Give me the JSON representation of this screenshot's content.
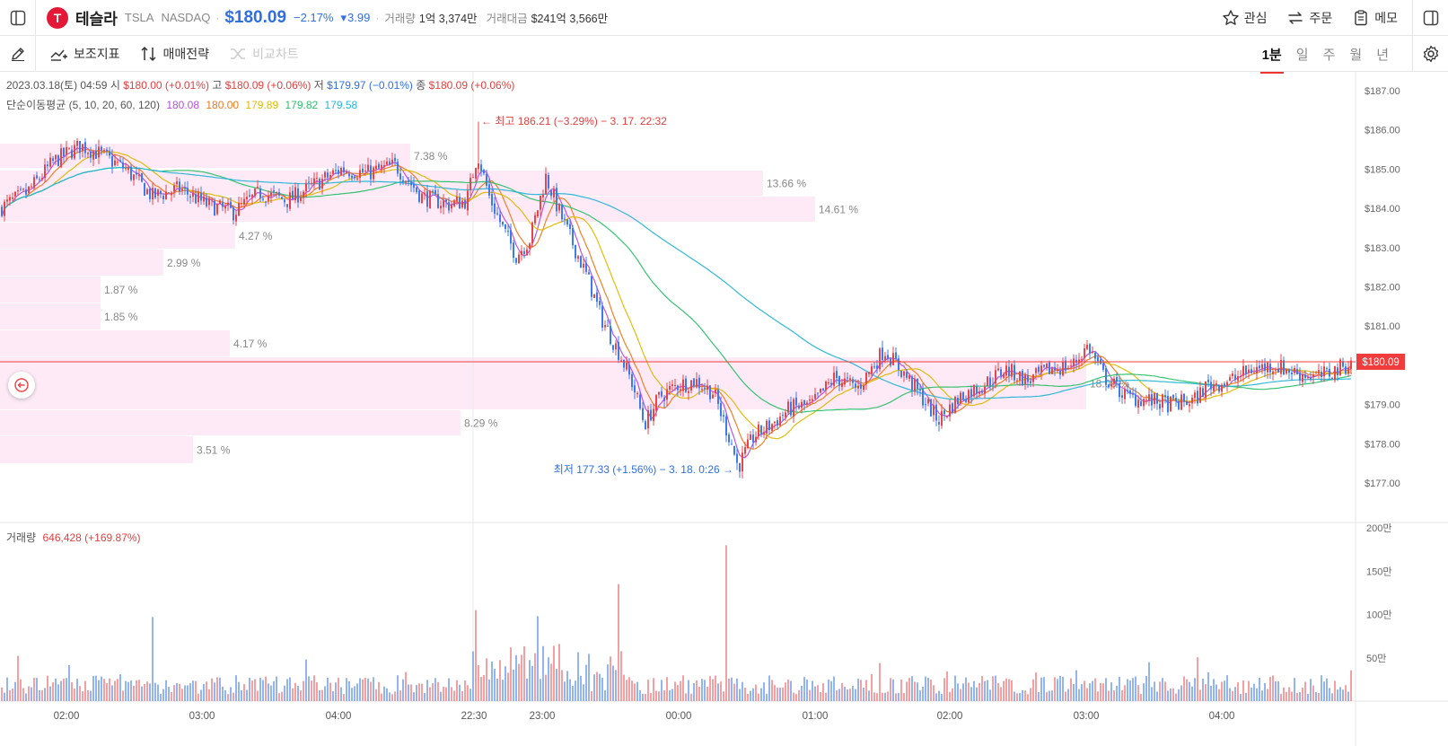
{
  "header": {
    "ticker_name": "테슬라",
    "symbol": "TSLA",
    "exchange": "NASDAQ",
    "price": "$180.09",
    "change_pct": "−2.17%",
    "change_abs": "3.99",
    "volume_label": "거래량",
    "volume_value": "1억 3,374만",
    "amount_label": "거래대금",
    "amount_value": "$241억 3,566만",
    "actions": {
      "watch": "관심",
      "order": "주문",
      "memo": "메모"
    }
  },
  "toolbar": {
    "indicators": "보조지표",
    "strategy": "매매전략",
    "compare": "비교차트"
  },
  "periods": [
    "1분",
    "일",
    "주",
    "월",
    "년"
  ],
  "info": {
    "date": "2023.03.18(토) 04:59",
    "open_label": "시",
    "open": "$180.00 (+0.01%)",
    "high_label": "고",
    "high": "$180.09 (+0.06%)",
    "low_label": "저",
    "low": "$179.97 (−0.01%)",
    "close_label": "종",
    "close": "$180.09 (+0.06%)",
    "ma_label": "단순이동평균 (5, 10, 20, 60, 120)",
    "ma_values": [
      "180.08",
      "180.00",
      "179.89",
      "179.82",
      "179.58"
    ],
    "ma_colors": [
      "#b44fe0",
      "#f07a1e",
      "#e0b800",
      "#2bbf6a",
      "#27b4d6"
    ],
    "vol_label": "거래량",
    "vol_value": "646,428 (+169.87%)"
  },
  "annotations": {
    "high": "← 최고 186.21 (−3.29%) − 3. 17. 22:32",
    "low": "최저 177.33 (+1.56%) − 3. 18. 0:26 →",
    "current_price": "$180.09"
  },
  "colors": {
    "up": "#e8454a",
    "down": "#3d7be8",
    "profile": "#fdeaf6",
    "current": "#f03c3c"
  },
  "chart_data": {
    "type": "candlestick",
    "y_axis": {
      "min": 177.0,
      "max": 187.0,
      "ticks": [
        "$177.00",
        "$178.00",
        "$179.00",
        "$180.00",
        "$181.00",
        "$182.00",
        "$183.00",
        "$184.00",
        "$185.00",
        "$186.00",
        "$187.00"
      ]
    },
    "x_ticks": [
      "02:00",
      "03:00",
      "04:00",
      "22:30",
      "23:00",
      "00:00",
      "01:00",
      "02:00",
      "03:00",
      "04:00"
    ],
    "price_path": [
      [
        0,
        184.0
      ],
      [
        30,
        184.4
      ],
      [
        60,
        185.2
      ],
      [
        90,
        185.6
      ],
      [
        110,
        185.4
      ],
      [
        140,
        185.0
      ],
      [
        170,
        184.3
      ],
      [
        200,
        184.5
      ],
      [
        230,
        184.1
      ],
      [
        260,
        183.9
      ],
      [
        290,
        184.4
      ],
      [
        320,
        184.2
      ],
      [
        350,
        184.6
      ],
      [
        380,
        185.0
      ],
      [
        410,
        184.9
      ],
      [
        440,
        185.1
      ],
      [
        470,
        184.3
      ],
      [
        500,
        184.1
      ],
      [
        520,
        184.2
      ],
      [
        532,
        185.4
      ],
      [
        545,
        184.3
      ],
      [
        560,
        183.5
      ],
      [
        575,
        182.8
      ],
      [
        590,
        183.2
      ],
      [
        608,
        184.8
      ],
      [
        625,
        183.8
      ],
      [
        640,
        183.0
      ],
      [
        655,
        182.2
      ],
      [
        670,
        181.2
      ],
      [
        690,
        180.3
      ],
      [
        705,
        179.5
      ],
      [
        718,
        178.5
      ],
      [
        735,
        179.2
      ],
      [
        755,
        179.5
      ],
      [
        775,
        179.6
      ],
      [
        795,
        179.3
      ],
      [
        815,
        178.0
      ],
      [
        822,
        177.4
      ],
      [
        840,
        178.2
      ],
      [
        860,
        178.5
      ],
      [
        880,
        178.9
      ],
      [
        905,
        179.0
      ],
      [
        930,
        179.7
      ],
      [
        955,
        179.4
      ],
      [
        985,
        180.4
      ],
      [
        1010,
        179.7
      ],
      [
        1030,
        179.1
      ],
      [
        1045,
        178.6
      ],
      [
        1070,
        179.2
      ],
      [
        1095,
        179.5
      ],
      [
        1120,
        179.9
      ],
      [
        1145,
        179.6
      ],
      [
        1170,
        179.9
      ],
      [
        1195,
        180.0
      ],
      [
        1212,
        180.5
      ],
      [
        1230,
        179.7
      ],
      [
        1255,
        179.2
      ],
      [
        1280,
        179.1
      ],
      [
        1305,
        179.0
      ],
      [
        1330,
        179.1
      ],
      [
        1345,
        179.5
      ],
      [
        1370,
        179.6
      ],
      [
        1395,
        179.9
      ],
      [
        1420,
        180.0
      ],
      [
        1445,
        179.8
      ],
      [
        1470,
        179.7
      ],
      [
        1490,
        179.9
      ],
      [
        1508,
        180.1
      ]
    ],
    "volume_profile": [
      {
        "label": "7.38 %",
        "value": 7.38
      },
      {
        "label": "13.66 %",
        "value": 13.66
      },
      {
        "label": "14.61 %",
        "value": 14.61
      },
      {
        "label": "4.27 %",
        "value": 4.27
      },
      {
        "label": "2.99 %",
        "value": 2.99
      },
      {
        "label": "1.87 %",
        "value": 1.87
      },
      {
        "label": "1.85 %",
        "value": 1.85
      },
      {
        "label": "4.17 %",
        "value": 4.17
      },
      {
        "label": "18.09 %",
        "value": 18.09
      },
      {
        "label": "8.29 %",
        "value": 8.29
      },
      {
        "label": "3.51 %",
        "value": 3.51
      }
    ],
    "volume_axis": {
      "ticks": [
        "200만",
        "150만",
        "100만",
        "50만"
      ],
      "max": 200
    },
    "volume_spikes": [
      {
        "t": 170,
        "v": 97
      },
      {
        "t": 530,
        "v": 105
      },
      {
        "t": 600,
        "v": 98
      },
      {
        "t": 690,
        "v": 135
      },
      {
        "t": 810,
        "v": 180
      }
    ]
  }
}
